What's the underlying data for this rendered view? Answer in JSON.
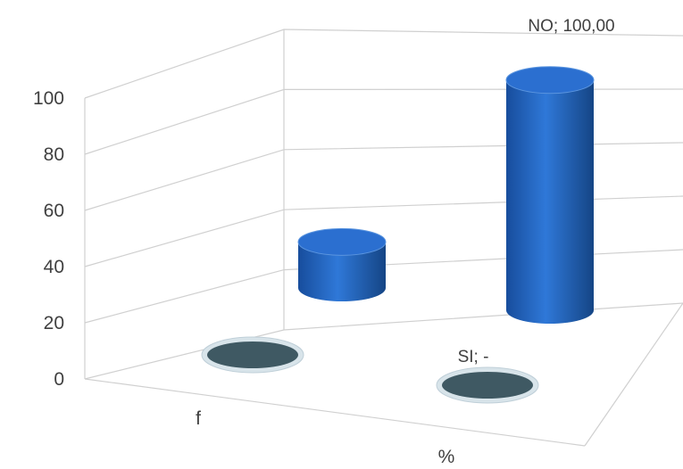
{
  "chart_data": {
    "type": "bar",
    "style": "3d-cylinder",
    "categories": [
      "f",
      "%"
    ],
    "series": [
      {
        "name": "SI",
        "values": [
          0,
          0
        ]
      },
      {
        "name": "NO",
        "values": [
          20,
          100
        ]
      }
    ],
    "ylim": [
      0,
      100
    ],
    "yticks": [
      "0",
      "20",
      "40",
      "60",
      "80",
      "100"
    ],
    "data_labels": [
      {
        "series": "NO",
        "category": "%",
        "text": "NO;  100,00"
      },
      {
        "series": "SI",
        "category": "%",
        "text": "SI;  -"
      }
    ],
    "grid": true,
    "legend": "none",
    "colors": {
      "bar": "#1f5fb8",
      "bar_top": "#2b6fd0",
      "empty_disc": "#3f5963",
      "grid": "#d0d0d0"
    }
  }
}
